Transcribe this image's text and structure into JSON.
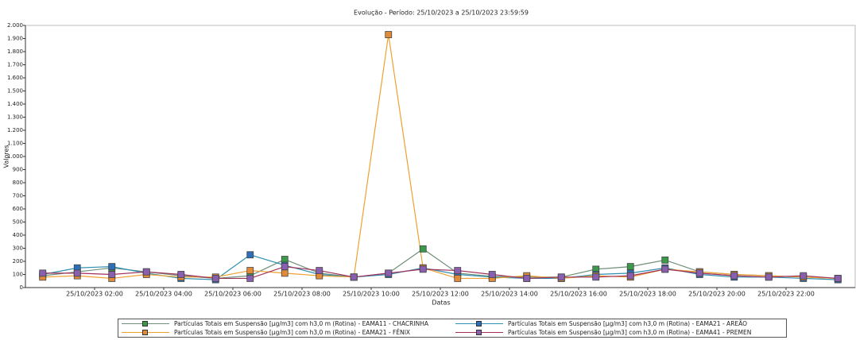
{
  "chart_data": {
    "type": "line",
    "title": "Evolução - Período: 25/10/2023 a 25/10/2023 23:59:59",
    "x_label": "Datas",
    "y_label": "Valores",
    "x": [
      0.5,
      1.5,
      2.5,
      3.5,
      4.5,
      5.5,
      6.5,
      7.5,
      8.5,
      9.5,
      10.5,
      11.5,
      12.5,
      13.5,
      14.5,
      15.5,
      16.5,
      17.5,
      18.5,
      19.5,
      20.5,
      21.5,
      22.5,
      23.5
    ],
    "xlim": [
      0,
      24
    ],
    "xticks": [
      {
        "value": 2,
        "label": "25/10/2023 02:00"
      },
      {
        "value": 4,
        "label": "25/10/2023 04:00"
      },
      {
        "value": 6,
        "label": "25/10/2023 06:00"
      },
      {
        "value": 8,
        "label": "25/10/2023 08:00"
      },
      {
        "value": 10,
        "label": "25/10/2023 10:00"
      },
      {
        "value": 12,
        "label": "25/10/2023 12:00"
      },
      {
        "value": 14,
        "label": "25/10/2023 14:00"
      },
      {
        "value": 16,
        "label": "25/10/2023 16:00"
      },
      {
        "value": 18,
        "label": "25/10/2023 18:00"
      },
      {
        "value": 20,
        "label": "25/10/2023 20:00"
      },
      {
        "value": 22,
        "label": "25/10/2023 22:00"
      }
    ],
    "ylim": [
      0,
      2000
    ],
    "yticks": [
      0,
      100,
      200,
      300,
      400,
      500,
      600,
      700,
      800,
      900,
      {
        "value": 1000,
        "label": "1.000"
      },
      {
        "value": 1100,
        "label": "1.100"
      },
      {
        "value": 1200,
        "label": "1.200"
      },
      {
        "value": 1300,
        "label": "1.300"
      },
      {
        "value": 1400,
        "label": "1.400"
      },
      {
        "value": 1500,
        "label": "1.500"
      },
      {
        "value": 1600,
        "label": "1.600"
      },
      {
        "value": 1700,
        "label": "1.700"
      },
      {
        "value": 1800,
        "label": "1.800"
      },
      {
        "value": 1900,
        "label": "1.900"
      },
      {
        "value": 2000,
        "label": "2.000"
      }
    ],
    "series": [
      {
        "name": "Partículas Totais em Suspensão [µg/m3] com h3,0 m (Rotina) - EAMA11 - CHACRINHA",
        "color": "#3a9a4a",
        "line_color": "#6f8f78",
        "values": [
          90,
          120,
          150,
          120,
          90,
          70,
          90,
          215,
          110,
          80,
          110,
          295,
          110,
          85,
          80,
          80,
          140,
          160,
          210,
          120,
          100,
          90,
          80,
          70
        ]
      },
      {
        "name": "Partículas Totais em Suspensão [µg/m3] com h3,0 m (Rotina) - EAMA21 - AREÃO",
        "color": "#2a6fb8",
        "line_color": "#2f8fb0",
        "values": [
          100,
          150,
          160,
          110,
          70,
          60,
          250,
          170,
          100,
          80,
          100,
          150,
          100,
          80,
          70,
          70,
          100,
          110,
          150,
          100,
          80,
          80,
          70,
          60
        ]
      },
      {
        "name": "Partículas Totais em Suspensão [µg/m3] com h3,0 m (Rotina) - EAMA21 - FÊNIX",
        "color": "#e08a3a",
        "line_color": "#f0a030",
        "values": [
          80,
          90,
          70,
          100,
          80,
          80,
          130,
          110,
          90,
          80,
          1930,
          150,
          70,
          70,
          90,
          70,
          90,
          80,
          140,
          120,
          100,
          90,
          80,
          70
        ]
      },
      {
        "name": "Partículas Totais em Suspensão [µg/m3] com h3,0 m (Rotina) - EAMA41 - PREMEN",
        "color": "#8a5fb0",
        "line_color": "#a0305a",
        "values": [
          110,
          110,
          100,
          120,
          100,
          70,
          70,
          160,
          130,
          80,
          110,
          140,
          130,
          100,
          70,
          80,
          80,
          90,
          140,
          110,
          90,
          80,
          90,
          70
        ]
      }
    ]
  }
}
